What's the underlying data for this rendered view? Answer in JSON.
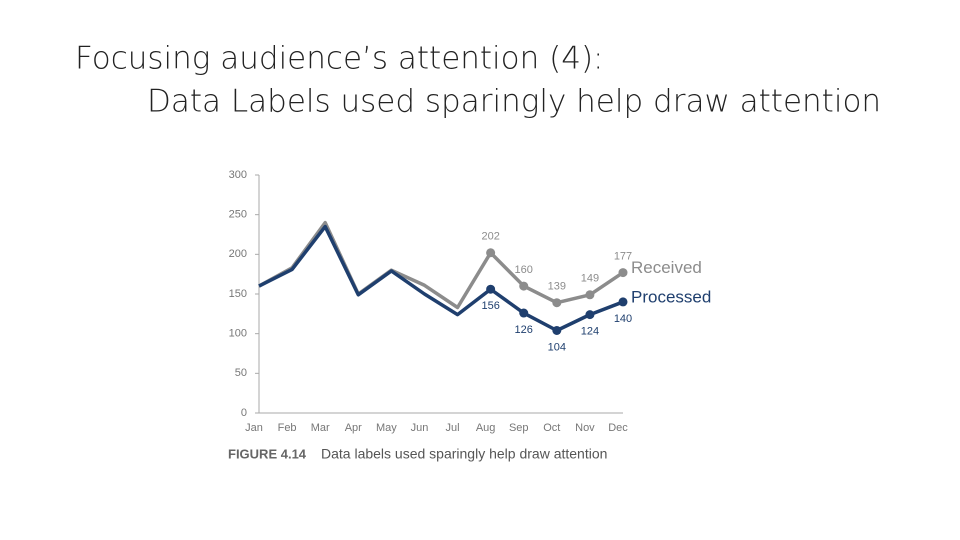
{
  "header": {
    "title": "Focusing audience’s attention (4):",
    "subtitle": "Data Labels used sparingly help draw attention"
  },
  "chart_data": {
    "type": "line",
    "categories": [
      "Jan",
      "Feb",
      "Mar",
      "Apr",
      "May",
      "Jun",
      "Jul",
      "Aug",
      "Sep",
      "Oct",
      "Nov",
      "Dec"
    ],
    "series": [
      {
        "name": "Received",
        "color": "#8c8c8c",
        "values": [
          160,
          183,
          240,
          150,
          180,
          161,
          133,
          202,
          160,
          139,
          149,
          177
        ],
        "value_labels": [
          null,
          null,
          null,
          null,
          null,
          null,
          null,
          "202",
          "160",
          "139",
          "149",
          "177"
        ]
      },
      {
        "name": "Processed",
        "color": "#1f3f6e",
        "values": [
          160,
          181,
          235,
          149,
          179,
          150,
          124,
          156,
          126,
          104,
          124,
          140
        ],
        "value_labels": [
          null,
          null,
          null,
          null,
          null,
          null,
          null,
          "156",
          "126",
          "104",
          "124",
          "140"
        ]
      }
    ],
    "ylim": [
      0,
      300
    ],
    "yticks": [
      0,
      50,
      100,
      150,
      200,
      250,
      300
    ],
    "grid": false,
    "caption_label": "FIGURE 4.14",
    "caption": "Data labels used sparingly help draw attention"
  }
}
